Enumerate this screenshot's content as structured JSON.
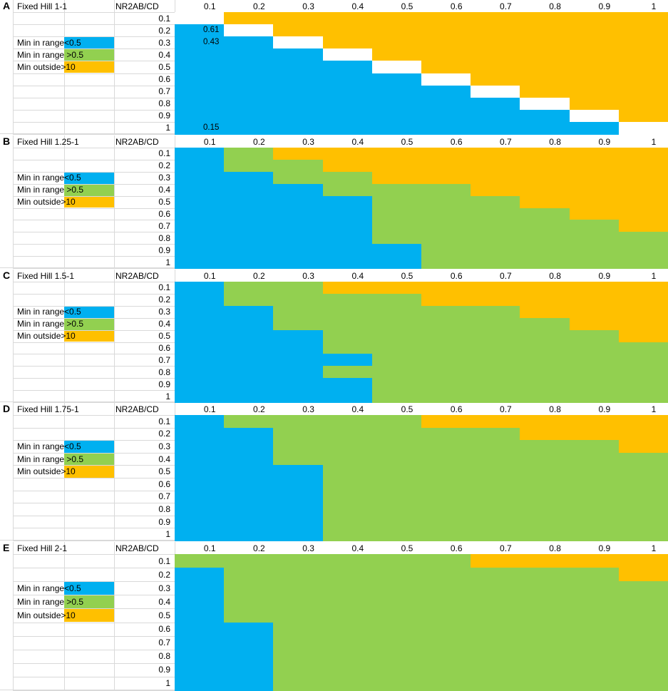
{
  "colors": {
    "blue": "#00b0f0",
    "green": "#92d050",
    "orange": "#ffc000",
    "white": "#ffffff"
  },
  "legend": [
    {
      "label": "Min in range<0.5",
      "color": "blue"
    },
    {
      "label": "Min in range >0.5",
      "color": "green"
    },
    {
      "label": "Min outside>10",
      "color": "orange"
    }
  ],
  "chart_data": [
    {
      "type": "heatmap",
      "panel": "A",
      "title": "Fixed Hill 1-1",
      "header": "NR2AB/CD",
      "columns": [
        "0.1",
        "0.2",
        "0.3",
        "0.4",
        "0.5",
        "0.6",
        "0.7",
        "0.8",
        "0.9",
        "1"
      ],
      "rows": [
        "0.1",
        "0.2",
        "0.3",
        "0.4",
        "0.5",
        "0.6",
        "0.7",
        "0.8",
        "0.9",
        "1"
      ],
      "categories_per_row": [
        "WOOOOOOOOO",
        "BWOOOOOOOO",
        "BBWOOOOOOO",
        "BBBWOOOOOO",
        "BBBBWOOOOO",
        "BBBBBWOOOO",
        "BBBBBBWOOO",
        "BBBBBBBWOO",
        "BBBBBBBBWO",
        "BBBBBBBBBW"
      ],
      "annotations": [
        {
          "row": 1,
          "col": 0,
          "text": "0.61"
        },
        {
          "row": 2,
          "col": 0,
          "text": "0.43"
        },
        {
          "row": 9,
          "col": 0,
          "text": "0.15"
        }
      ]
    },
    {
      "type": "heatmap",
      "panel": "B",
      "title": "Fixed Hill 1.25-1",
      "header": "NR2AB/CD",
      "columns": [
        "0.1",
        "0.2",
        "0.3",
        "0.4",
        "0.5",
        "0.6",
        "0.7",
        "0.8",
        "0.9",
        "1"
      ],
      "rows": [
        "0.1",
        "0.2",
        "0.3",
        "0.4",
        "0.5",
        "0.6",
        "0.7",
        "0.8",
        "0.9",
        "1"
      ],
      "categories_per_row": [
        "BGOOOOOOOO",
        "BGGOOOOOOO",
        "BBGGOOOOOO",
        "BBBGGGOOOO",
        "BBBBGGGOOO",
        "BBBBGGGGOO",
        "BBBBGGGGGO",
        "BBBBGGGGGG",
        "BBBBBGGGGG",
        "BBBBBGGGGG"
      ],
      "annotations": []
    },
    {
      "type": "heatmap",
      "panel": "C",
      "title": "Fixed Hill 1.5-1",
      "header": "NR2AB/CD",
      "columns": [
        "0.1",
        "0.2",
        "0.3",
        "0.4",
        "0.5",
        "0.6",
        "0.7",
        "0.8",
        "0.9",
        "1"
      ],
      "rows": [
        "0.1",
        "0.2",
        "0.3",
        "0.4",
        "0.5",
        "0.6",
        "0.7",
        "0.8",
        "0.9",
        "1"
      ],
      "categories_per_row": [
        "BGGOOOOOOO",
        "BGGGGOOOOO",
        "BBGGGGGOOO",
        "BBGGGGGGOO",
        "BBBGGGGGGO",
        "BBBGGGGGGG",
        "BBBBGGGGGG",
        "BBBGGGGGGG",
        "BBBBGGGGGG",
        "BBBBGGGGGG"
      ],
      "annotations": []
    },
    {
      "type": "heatmap",
      "panel": "D",
      "title": "Fixed Hill 1.75-1",
      "header": "NR2AB/CD",
      "columns": [
        "0.1",
        "0.2",
        "0.3",
        "0.4",
        "0.5",
        "0.6",
        "0.7",
        "0.8",
        "0.9",
        "1"
      ],
      "rows": [
        "0.1",
        "0.2",
        "0.3",
        "0.4",
        "0.5",
        "0.6",
        "0.7",
        "0.8",
        "0.9",
        "1"
      ],
      "categories_per_row": [
        "BGGGGOOOOO",
        "BBGGGGGOOO",
        "BBGGGGGGGO",
        "BBGGGGGGGG",
        "BBBGGGGGGG",
        "BBBGGGGGGG",
        "BBBGGGGGGG",
        "BBBGGGGGGG",
        "BBBGGGGGGG",
        "BBBGGGGGGG"
      ],
      "annotations": []
    },
    {
      "type": "heatmap",
      "panel": "E",
      "title": "Fixed Hill 2-1",
      "header": "NR2AB/CD",
      "columns": [
        "0.1",
        "0.2",
        "0.3",
        "0.4",
        "0.5",
        "0.6",
        "0.7",
        "0.8",
        "0.9",
        "1"
      ],
      "rows": [
        "0.1",
        "0.2",
        "0.3",
        "0.4",
        "0.5",
        "0.6",
        "0.7",
        "0.8",
        "0.9",
        "1"
      ],
      "categories_per_row": [
        "GGGGGGOOOO",
        "BGGGGGGGGO",
        "BGGGGGGGGG",
        "BGGGGGGGGG",
        "BGGGGGGGGG",
        "BBGGGGGGGG",
        "BBGGGGGGGG",
        "BBGGGGGGGG",
        "BBGGGGGGGG",
        "BBGGGGGGGG"
      ],
      "annotations": []
    }
  ]
}
